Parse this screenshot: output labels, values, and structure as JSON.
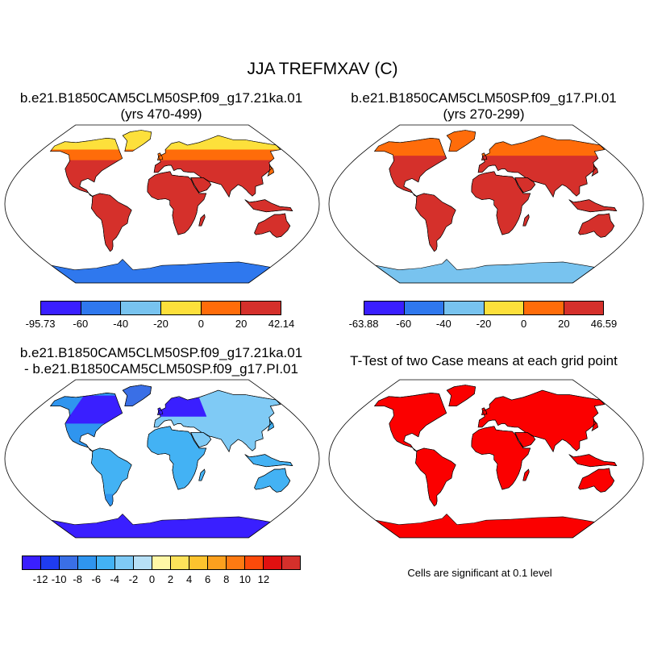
{
  "main_title": "JJA TREFMXAV (C)",
  "panels": [
    {
      "id": "case1",
      "title_line1": "b.e21.B1850CAM5CLM50SP.f09_g17.21ka.01",
      "title_line2": "(yrs 470-499)"
    },
    {
      "id": "case2",
      "title_line1": "b.e21.B1850CAM5CLM50SP.f09_g17.PI.01",
      "title_line2": "(yrs 270-299)"
    },
    {
      "id": "diff",
      "title_line1": "b.e21.B1850CAM5CLM50SP.f09_g17.21ka.01",
      "title_line2": "- b.e21.B1850CAM5CLM50SP.f09_g17.PI.01"
    },
    {
      "id": "ttest",
      "title_line1": "T-Test of two Case means at each grid point",
      "title_line2": ""
    }
  ],
  "colorbars": {
    "case1": {
      "colors": [
        "#3a1fff",
        "#2f78ee",
        "#78c3ef",
        "#fde03b",
        "#ff6c0a",
        "#d5302b"
      ],
      "labels": [
        "-95.73",
        "-60",
        "-40",
        "-20",
        "0",
        "20",
        "42.14"
      ]
    },
    "case2": {
      "colors": [
        "#3a1fff",
        "#2f78ee",
        "#78c3ef",
        "#fde03b",
        "#ff6c0a",
        "#d5302b"
      ],
      "labels": [
        "-63.88",
        "-60",
        "-40",
        "-20",
        "0",
        "20",
        "46.59"
      ]
    },
    "diff": {
      "colors": [
        "#3a1fff",
        "#1f3cf0",
        "#3a6fe6",
        "#2f95ef",
        "#43b2f4",
        "#7fcaf5",
        "#b7e0f6",
        "#fff8a6",
        "#fde25a",
        "#fdc32e",
        "#fca01e",
        "#fd7a12",
        "#fc4a0a",
        "#e11010",
        "#d5302b"
      ],
      "labels": [
        "-12",
        "-10",
        "-8",
        "-6",
        "-4",
        "-2",
        "0",
        "2",
        "4",
        "6",
        "8",
        "10",
        "12"
      ]
    }
  },
  "ttest_note": "Cells are significant at 0.1 level",
  "map_colors": {
    "case1": {
      "ocean": "#ffffff",
      "land_hot": "#d5302b",
      "land_warm": "#ff6c0a",
      "land_mild": "#fde03b",
      "land_cool": "#78c3ef",
      "land_cold": "#2f78ee"
    },
    "case2": {
      "ocean": "#ffffff",
      "land_hot": "#d5302b",
      "land_warm": "#ff6c0a",
      "land_mild": "#fde03b",
      "land_cool": "#78c3ef",
      "land_cold": "#2f78ee"
    },
    "diff": {
      "ocean": "#ffffff",
      "land_hot": "#7fcaf5",
      "land_warm": "#43b2f4",
      "land_mild": "#2f95ef",
      "land_cool": "#3a6fe6",
      "land_cold": "#3a1fff"
    },
    "ttest": {
      "ocean": "#ffffff",
      "land_hot": "#fb0000",
      "land_warm": "#fb0000",
      "land_mild": "#fb0000",
      "land_cool": "#fb0000",
      "land_cold": "#fb0000"
    }
  }
}
